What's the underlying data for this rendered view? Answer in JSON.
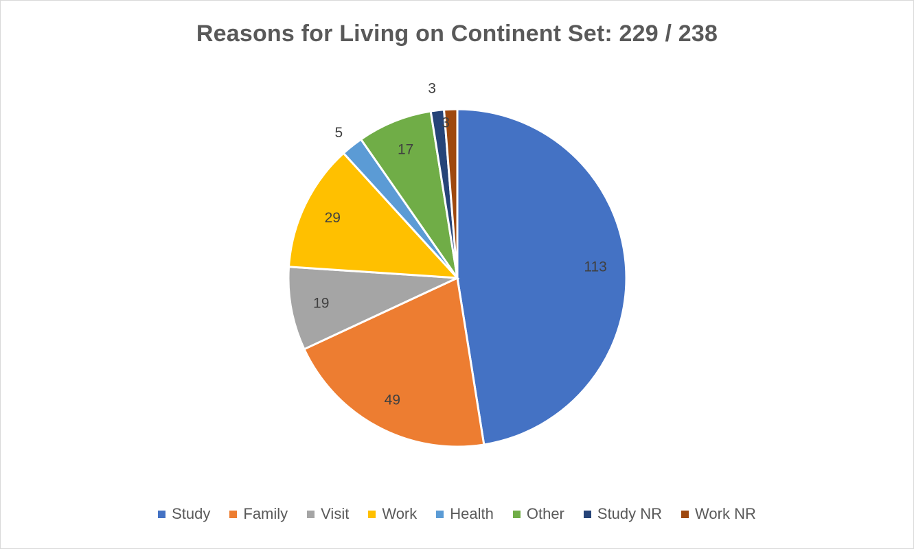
{
  "chart_data": {
    "type": "pie",
    "title": "Reasons for Living on Continent Set: 229 / 238",
    "categories": [
      "Study",
      "Family",
      "Visit",
      "Work",
      "Health",
      "Other",
      "Study NR",
      "Work NR"
    ],
    "values": [
      113,
      49,
      19,
      29,
      5,
      17,
      3,
      3
    ],
    "data_labels": [
      "113",
      "49",
      "19",
      "29",
      "5",
      "17",
      "3",
      "3"
    ],
    "colors": [
      "#4472C4",
      "#ED7D31",
      "#A5A5A5",
      "#FFC000",
      "#5B9BD5",
      "#70AD47",
      "#264478",
      "#9E480E"
    ],
    "legend": "bottom",
    "start_angle": "12 o'clock",
    "direction": "clockwise"
  }
}
